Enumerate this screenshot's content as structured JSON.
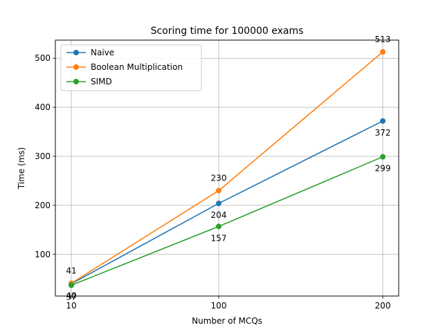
{
  "chart_data": {
    "type": "line",
    "title": "Scoring time for 100000 exams",
    "xlabel": "Number of MCQs",
    "ylabel": "Time (ms)",
    "x": [
      10,
      100,
      200
    ],
    "x_tick_labels": [
      "10",
      "100",
      "200"
    ],
    "y_ticks": [
      100,
      200,
      300,
      400,
      500
    ],
    "y_tick_labels": [
      "100",
      "200",
      "300",
      "400",
      "500"
    ],
    "xlim": [
      0,
      210
    ],
    "ylim": [
      15,
      537
    ],
    "grid": true,
    "legend_position": "top-left",
    "series": [
      {
        "name": "Naive",
        "color": "#1f77b4",
        "values": [
          40,
          204,
          372
        ],
        "labels": [
          "40",
          "204",
          "372"
        ],
        "label_side": "below"
      },
      {
        "name": "Boolean Multiplication",
        "color": "#ff7f0e",
        "values": [
          41,
          230,
          513
        ],
        "labels": [
          "41",
          "230",
          "513"
        ],
        "label_side": "above"
      },
      {
        "name": "SIMD",
        "color": "#2ca02c",
        "values": [
          37,
          157,
          299
        ],
        "labels": [
          "37",
          "157",
          "299"
        ],
        "label_side": "below"
      }
    ]
  }
}
